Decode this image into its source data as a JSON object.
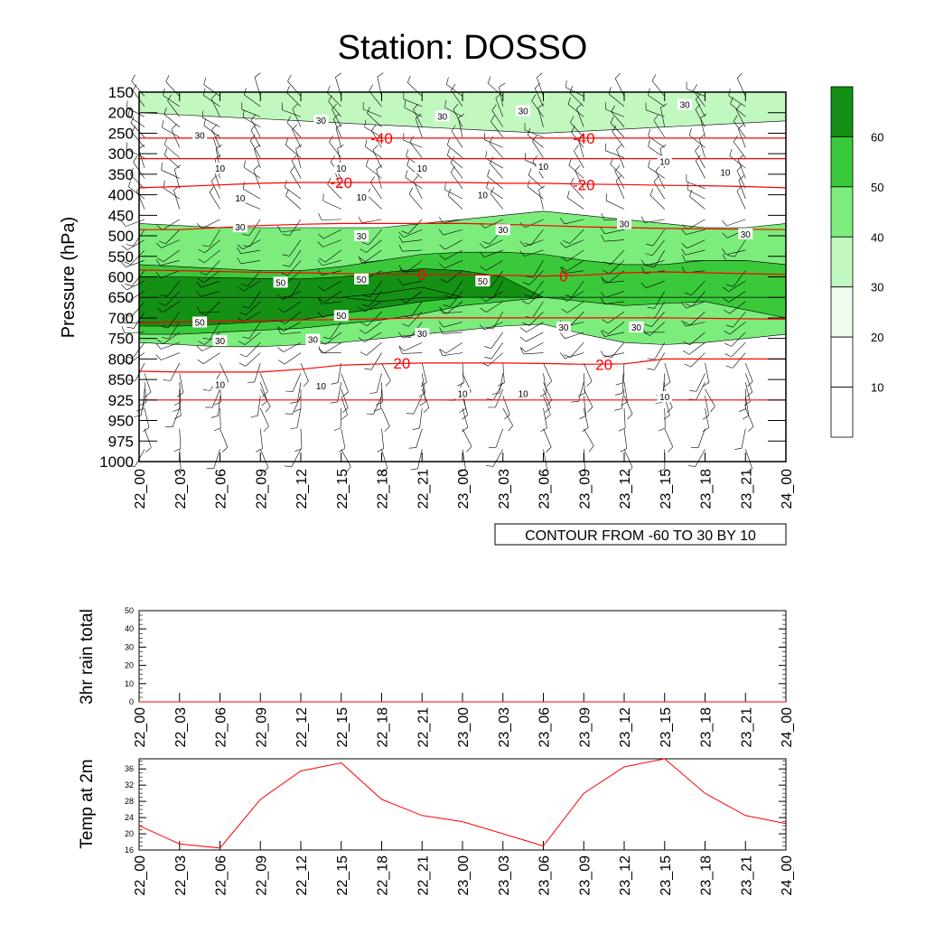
{
  "title": "Station: DOSSO",
  "time_labels": [
    "22_00",
    "22_03",
    "22_06",
    "22_09",
    "22_12",
    "22_15",
    "22_18",
    "22_21",
    "23_00",
    "23_03",
    "23_06",
    "23_09",
    "23_12",
    "23_15",
    "23_18",
    "23_21",
    "24_00"
  ],
  "chart_data": [
    {
      "type": "heatmap",
      "name": "time-pressure cross section (relative humidity with temperature contours and wind barbs)",
      "ylabel": "Pressure (hPa)",
      "y_ticks": [
        150,
        200,
        250,
        300,
        350,
        400,
        450,
        500,
        550,
        600,
        650,
        700,
        750,
        800,
        850,
        925,
        950,
        975,
        1000
      ],
      "annotation": "CONTOUR FROM -60 TO 30 BY 10",
      "colorbar": {
        "levels": [
          10,
          20,
          30,
          40,
          50,
          60
        ],
        "label_levels": [
          10,
          20,
          30,
          40,
          50,
          60
        ],
        "colors": [
          "#ffffff",
          "#ffffff",
          "#eefcee",
          "#c0f8c0",
          "#7ced7c",
          "#3ac93a",
          "#149014"
        ]
      },
      "humidity_bands": [
        {
          "value": 30,
          "label": "30",
          "bottom_hPa": [
            200,
            205,
            210,
            215,
            220,
            225,
            230,
            235,
            240,
            245,
            250,
            245,
            240,
            235,
            230,
            225,
            220
          ],
          "top_hPa": [
            150,
            150,
            150,
            150,
            150,
            150,
            150,
            150,
            150,
            150,
            150,
            150,
            150,
            150,
            150,
            150,
            150
          ]
        },
        {
          "value": 40,
          "label": "30",
          "bottom_hPa": [
            760,
            765,
            770,
            770,
            765,
            760,
            750,
            740,
            730,
            720,
            715,
            740,
            760,
            765,
            760,
            750,
            740
          ],
          "top_hPa": [
            470,
            475,
            480,
            480,
            480,
            480,
            480,
            470,
            460,
            450,
            440,
            450,
            460,
            470,
            480,
            480,
            470
          ]
        },
        {
          "value": 50,
          "label": "50",
          "bottom_hPa": [
            740,
            740,
            735,
            730,
            725,
            715,
            705,
            690,
            670,
            660,
            650,
            660,
            670,
            665,
            660,
            680,
            700
          ],
          "top_hPa": [
            570,
            575,
            580,
            585,
            585,
            575,
            560,
            545,
            540,
            540,
            545,
            560,
            570,
            570,
            560,
            560,
            570
          ]
        },
        {
          "value": 60,
          "label": "50",
          "bottom_hPa": [
            720,
            720,
            715,
            710,
            705,
            690,
            675,
            660,
            650,
            650,
            650,
            650,
            650,
            650,
            650,
            650,
            650
          ],
          "top_hPa": [
            600,
            600,
            602,
            604,
            605,
            600,
            590,
            580,
            585,
            600,
            650,
            650,
            650,
            650,
            650,
            650,
            650
          ]
        },
        {
          "value": 70,
          "label": "",
          "bottom_hPa": [
            650,
            650,
            650,
            650,
            650,
            650,
            660,
            650,
            650,
            650,
            650,
            650,
            650,
            650,
            650,
            650,
            650
          ],
          "top_hPa": [
            650,
            650,
            650,
            650,
            650,
            650,
            640,
            625,
            650,
            650,
            650,
            650,
            650,
            650,
            650,
            650,
            650
          ]
        }
      ],
      "temperature_contours": [
        {
          "value": -40,
          "label": "-40",
          "hPa": [
            262,
            262,
            262,
            262,
            262,
            262,
            262,
            262,
            262,
            262,
            262,
            262,
            262,
            262,
            262,
            262,
            262
          ]
        },
        {
          "value": -30,
          "label": "",
          "hPa": [
            312,
            312,
            312,
            312,
            312,
            312,
            312,
            312,
            312,
            312,
            312,
            312,
            312,
            312,
            312,
            312,
            312
          ]
        },
        {
          "value": -20,
          "label": "-20",
          "hPa": [
            383,
            380,
            376,
            372,
            370,
            370,
            370,
            370,
            370,
            372,
            372,
            374,
            375,
            377,
            378,
            380,
            383
          ]
        },
        {
          "value": -10,
          "label": "",
          "hPa": [
            485,
            485,
            480,
            475,
            472,
            470,
            470,
            470,
            470,
            472,
            475,
            478,
            480,
            482,
            483,
            484,
            485
          ]
        },
        {
          "value": 0,
          "label": "0",
          "hPa": [
            583,
            585,
            587,
            589,
            590,
            592,
            593,
            594,
            595,
            596,
            598,
            596,
            590,
            588,
            590,
            592,
            594
          ]
        },
        {
          "value": 10,
          "label": "",
          "hPa": [
            712,
            710,
            708,
            706,
            705,
            704,
            702,
            700,
            700,
            700,
            700,
            700,
            700,
            700,
            701,
            702,
            703
          ]
        },
        {
          "value": 20,
          "label": "20",
          "hPa": [
            830,
            832,
            832,
            832,
            825,
            815,
            812,
            810,
            810,
            810,
            811,
            813,
            812,
            800,
            800,
            800,
            800
          ]
        },
        {
          "value": 30,
          "label": "",
          "hPa": [
            925,
            925,
            925,
            925,
            925,
            925,
            925,
            925,
            925,
            925,
            925,
            925,
            925,
            925,
            925,
            925,
            925
          ]
        }
      ],
      "contour_labels": [
        {
          "text": "-40",
          "t": 6,
          "p": 262,
          "big": true
        },
        {
          "text": "-40",
          "t": 11,
          "p": 262,
          "big": true
        },
        {
          "text": "-20",
          "t": 5,
          "p": 370,
          "big": true
        },
        {
          "text": "-20",
          "t": 11,
          "p": 376,
          "big": true
        },
        {
          "text": "0",
          "t": 7,
          "p": 594,
          "big": true
        },
        {
          "text": "0",
          "t": 10.5,
          "p": 598,
          "big": true
        },
        {
          "text": "20",
          "t": 6.5,
          "p": 810,
          "big": true
        },
        {
          "text": "20",
          "t": 11.5,
          "p": 813,
          "big": true
        },
        {
          "text": "30",
          "t": 4.5,
          "p": 218,
          "big": false
        },
        {
          "text": "30",
          "t": 7.5,
          "p": 208,
          "big": false
        },
        {
          "text": "30",
          "t": 9.5,
          "p": 195,
          "big": false
        },
        {
          "text": "30",
          "t": 13.5,
          "p": 180,
          "big": false
        },
        {
          "text": "30",
          "t": 1.5,
          "p": 255,
          "big": false
        },
        {
          "text": "10",
          "t": 2,
          "p": 335,
          "big": false
        },
        {
          "text": "10",
          "t": 5,
          "p": 335,
          "big": false
        },
        {
          "text": "10",
          "t": 7,
          "p": 335,
          "big": false
        },
        {
          "text": "10",
          "t": 10,
          "p": 330,
          "big": false
        },
        {
          "text": "10",
          "t": 13,
          "p": 318,
          "big": false
        },
        {
          "text": "10",
          "t": 14.5,
          "p": 345,
          "big": false
        },
        {
          "text": "10",
          "t": 2.5,
          "p": 407,
          "big": false
        },
        {
          "text": "10",
          "t": 5.5,
          "p": 405,
          "big": false
        },
        {
          "text": "10",
          "t": 8.5,
          "p": 400,
          "big": false
        },
        {
          "text": "30",
          "t": 2.5,
          "p": 478,
          "big": false
        },
        {
          "text": "30",
          "t": 5.5,
          "p": 500,
          "big": false
        },
        {
          "text": "30",
          "t": 9,
          "p": 485,
          "big": false
        },
        {
          "text": "30",
          "t": 12,
          "p": 470,
          "big": false
        },
        {
          "text": "30",
          "t": 15,
          "p": 495,
          "big": false
        },
        {
          "text": "50",
          "t": 3.5,
          "p": 613,
          "big": false
        },
        {
          "text": "50",
          "t": 5.5,
          "p": 605,
          "big": false
        },
        {
          "text": "50",
          "t": 8.5,
          "p": 610,
          "big": false
        },
        {
          "text": "50",
          "t": 5,
          "p": 694,
          "big": false
        },
        {
          "text": "50",
          "t": 1.5,
          "p": 710,
          "big": false
        },
        {
          "text": "30",
          "t": 2,
          "p": 755,
          "big": false
        },
        {
          "text": "30",
          "t": 4.3,
          "p": 752,
          "big": false
        },
        {
          "text": "30",
          "t": 7,
          "p": 738,
          "big": false
        },
        {
          "text": "30",
          "t": 10.5,
          "p": 722,
          "big": false
        },
        {
          "text": "30",
          "t": 12.3,
          "p": 722,
          "big": false
        },
        {
          "text": "10",
          "t": 2,
          "p": 868,
          "big": false
        },
        {
          "text": "10",
          "t": 4.5,
          "p": 873,
          "big": false
        },
        {
          "text": "10",
          "t": 8,
          "p": 900,
          "big": false
        },
        {
          "text": "10",
          "t": 9.5,
          "p": 900,
          "big": false
        },
        {
          "text": "10",
          "t": 13,
          "p": 912,
          "big": false
        }
      ]
    },
    {
      "type": "line",
      "name": "3hr rain total",
      "ylabel": "3hr rain total",
      "ylim": [
        0,
        50
      ],
      "y_ticks": [
        0,
        10,
        20,
        30,
        40,
        50
      ],
      "x": [
        "22_00",
        "22_03",
        "22_06",
        "22_09",
        "22_12",
        "22_15",
        "22_18",
        "22_21",
        "23_00",
        "23_03",
        "23_06",
        "23_09",
        "23_12",
        "23_15",
        "23_18",
        "23_21",
        "24_00"
      ],
      "values": [
        0,
        0,
        0,
        0,
        0,
        0,
        0,
        0,
        0,
        0,
        0,
        0,
        0,
        0,
        0,
        0,
        0
      ]
    },
    {
      "type": "line",
      "name": "Temp at 2m",
      "ylabel": "Temp at 2m",
      "ylim": [
        16,
        38.5
      ],
      "y_ticks": [
        16,
        20,
        24,
        28,
        32,
        36
      ],
      "x": [
        "22_00",
        "22_03",
        "22_06",
        "22_09",
        "22_12",
        "22_15",
        "22_18",
        "22_21",
        "23_00",
        "23_03",
        "23_06",
        "23_09",
        "23_12",
        "23_15",
        "23_18",
        "23_21",
        "24_00"
      ],
      "values": [
        22,
        17.5,
        16.5,
        28.5,
        35.5,
        37.5,
        28.5,
        24.5,
        23,
        20,
        17,
        30,
        36.5,
        38.5,
        30,
        24.5,
        22.5
      ],
      "line_color": "#ff0000"
    }
  ]
}
